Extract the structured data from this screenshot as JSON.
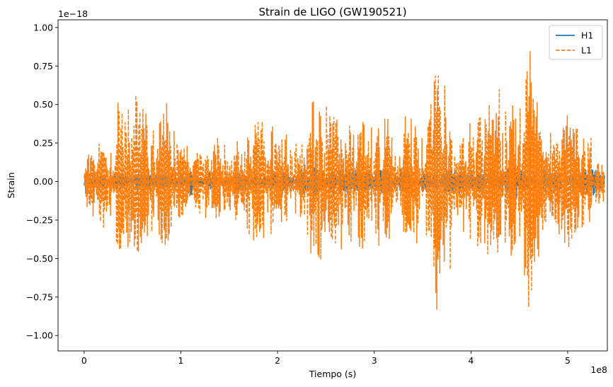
{
  "chart_data": {
    "type": "line",
    "title": "Strain de LIGO (GW190521)",
    "xlabel": "Tiempo (s)",
    "ylabel": "Strain",
    "x_offset_text": "1e8",
    "y_offset_text": "1e−18",
    "xlim": [
      -0.27,
      5.41
    ],
    "ylim": [
      -1.1,
      1.05
    ],
    "x_ticks": [
      0,
      1,
      2,
      3,
      4,
      5
    ],
    "x_tick_labels": [
      "0",
      "1",
      "2",
      "3",
      "4",
      "5"
    ],
    "y_ticks": [
      -1.0,
      -0.75,
      -0.5,
      -0.25,
      0.0,
      0.25,
      0.5,
      0.75,
      1.0
    ],
    "y_tick_labels": [
      "−1.00",
      "−0.75",
      "−0.50",
      "−0.25",
      "0.00",
      "0.25",
      "0.50",
      "0.75",
      "1.00"
    ],
    "x_range_data": [
      0,
      5.38
    ],
    "grid": false,
    "legend_position": "upper right",
    "series": [
      {
        "name": "H1",
        "color": "#1f77b4",
        "style": "solid",
        "envelope": {
          "x": [
            0,
            0.1,
            0.3,
            0.6,
            0.9,
            1.1,
            1.15,
            1.4,
            1.8,
            2.2,
            2.35,
            2.5,
            2.8,
            3.0,
            3.3,
            3.6,
            3.8,
            4.0,
            4.3,
            4.45,
            4.5,
            4.6,
            4.9,
            5.1,
            5.3,
            5.38
          ],
          "amplitude": [
            0.1,
            0.08,
            0.06,
            0.07,
            0.06,
            0.12,
            0.08,
            0.06,
            0.08,
            0.07,
            0.17,
            0.1,
            0.08,
            0.09,
            0.1,
            0.06,
            0.1,
            0.08,
            0.07,
            0.15,
            0.08,
            0.07,
            0.09,
            0.08,
            0.1,
            0.08
          ]
        }
      },
      {
        "name": "L1",
        "color": "#ff7f0e",
        "style": "dashed",
        "envelope": {
          "x": [
            0,
            0.1,
            0.2,
            0.3,
            0.35,
            0.45,
            0.5,
            0.55,
            0.65,
            0.75,
            0.85,
            0.95,
            1.1,
            1.3,
            1.45,
            1.6,
            1.75,
            1.9,
            2.05,
            2.2,
            2.3,
            2.35,
            2.4,
            2.45,
            2.55,
            2.65,
            2.75,
            2.85,
            2.95,
            3.05,
            3.15,
            3.25,
            3.35,
            3.45,
            3.55,
            3.62,
            3.7,
            3.8,
            3.9,
            4.0,
            4.1,
            4.2,
            4.35,
            4.45,
            4.55,
            4.62,
            4.7,
            4.8,
            4.9,
            5.0,
            5.1,
            5.2,
            5.3,
            5.38
          ],
          "amplitude": [
            0.18,
            0.25,
            0.3,
            0.5,
            0.65,
            0.55,
            0.68,
            0.6,
            0.45,
            0.35,
            0.57,
            0.35,
            0.2,
            0.25,
            0.35,
            0.3,
            0.45,
            0.4,
            0.35,
            0.45,
            0.4,
            0.6,
            0.9,
            0.88,
            0.55,
            0.58,
            0.5,
            0.6,
            0.48,
            0.55,
            0.45,
            0.5,
            0.45,
            0.6,
            0.55,
            0.94,
            0.75,
            0.55,
            0.6,
            0.55,
            0.65,
            0.48,
            0.7,
            0.55,
            0.75,
            0.9,
            0.5,
            0.45,
            0.45,
            0.5,
            0.4,
            0.37,
            0.2,
            0.22
          ]
        }
      }
    ]
  }
}
